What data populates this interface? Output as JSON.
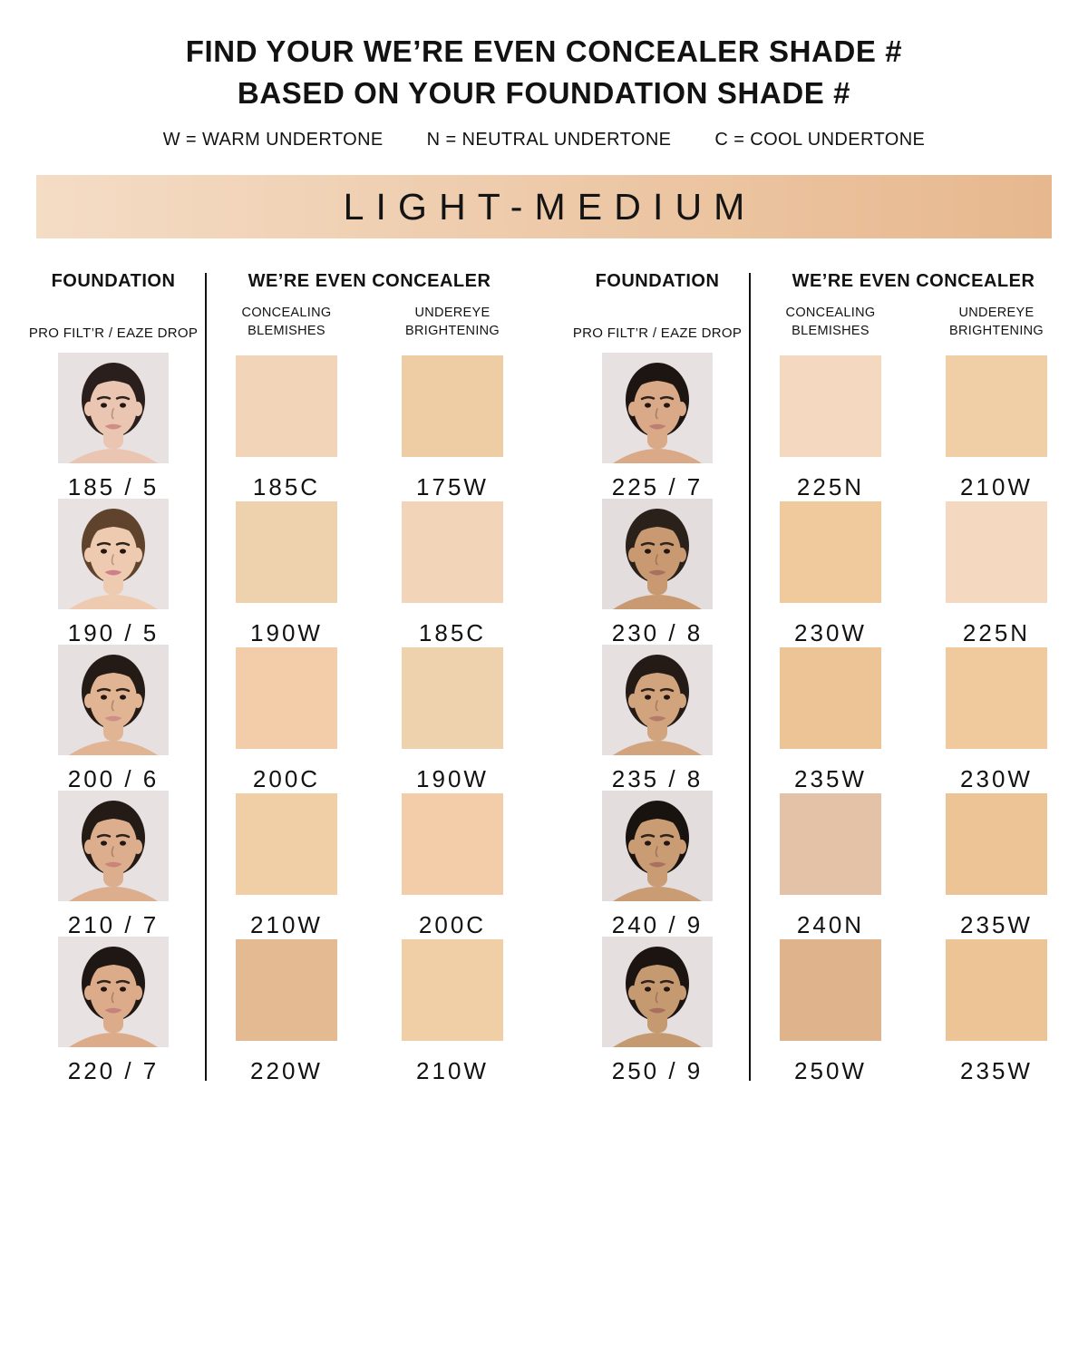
{
  "title": {
    "line1": "FIND YOUR WE’RE EVEN CONCEALER SHADE #",
    "line2": "BASED ON YOUR FOUNDATION SHADE #"
  },
  "legend": {
    "warm": "W = WARM UNDERTONE",
    "neutral": "N = NEUTRAL UNDERTONE",
    "cool": "C = COOL UNDERTONE"
  },
  "banner": {
    "label": "LIGHT-MEDIUM",
    "gradient_start": "#f4dcc5",
    "gradient_end": "#e7b88e"
  },
  "columns": {
    "foundation": "FOUNDATION",
    "foundation_sub": "PRO FILT’R / EAZE DROP",
    "concealer": "WE’RE EVEN CONCEALER",
    "blemish_sub": "CONCEALING BLEMISHES",
    "undereye_sub": "UNDEREYE BRIGHTENING"
  },
  "groups": [
    {
      "rows": [
        {
          "foundation_shade": "185 / 5",
          "blemish_label": "185C",
          "blemish_color": "#f2d4b9",
          "undereye_label": "175W",
          "undereye_color": "#efcda4",
          "face": {
            "bg": "#e7e1e1",
            "skin": "#eac6b2",
            "hair": "#2a1f1c",
            "lip": "#cf8d86"
          }
        },
        {
          "foundation_shade": "190 / 5",
          "blemish_label": "190W",
          "blemish_color": "#eed2ad",
          "undereye_label": "185C",
          "undereye_color": "#f2d4b9",
          "face": {
            "bg": "#e8e2e2",
            "skin": "#eecbb0",
            "hair": "#5f432c",
            "lip": "#ce7f8b"
          }
        },
        {
          "foundation_shade": "200 / 6",
          "blemish_label": "200C",
          "blemish_color": "#f3cca9",
          "undereye_label": "190W",
          "undereye_color": "#eed2ad",
          "face": {
            "bg": "#e6e0e0",
            "skin": "#e1b493",
            "hair": "#241a16",
            "lip": "#cf8f89"
          }
        },
        {
          "foundation_shade": "210 / 7",
          "blemish_label": "210W",
          "blemish_color": "#f1cfa6",
          "undereye_label": "200C",
          "undereye_color": "#f3cca9",
          "face": {
            "bg": "#e7e1e1",
            "skin": "#dcae8e",
            "hair": "#241a16",
            "lip": "#c98579"
          }
        },
        {
          "foundation_shade": "220 / 7",
          "blemish_label": "220W",
          "blemish_color": "#e3ba92",
          "undereye_label": "210W",
          "undereye_color": "#f1cfa6",
          "face": {
            "bg": "#e8e2e2",
            "skin": "#dcab89",
            "hair": "#1f1714",
            "lip": "#c3827e"
          }
        }
      ]
    },
    {
      "rows": [
        {
          "foundation_shade": "225 / 7",
          "blemish_label": "225N",
          "blemish_color": "#f5d8c0",
          "undereye_label": "210W",
          "undereye_color": "#f1cfa6",
          "face": {
            "bg": "#e7e1e1",
            "skin": "#d9a988",
            "hair": "#1c1512",
            "lip": "#bd7f72"
          }
        },
        {
          "foundation_shade": "230 / 8",
          "blemish_label": "230W",
          "blemish_color": "#f0ca9d",
          "undereye_label": "225N",
          "undereye_color": "#f5d8c0",
          "face": {
            "bg": "#e3dddd",
            "skin": "#c99a72",
            "hair": "#2a211b",
            "lip": "#a8715f"
          }
        },
        {
          "foundation_shade": "235 / 8",
          "blemish_label": "235W",
          "blemish_color": "#edc495",
          "undereye_label": "230W",
          "undereye_color": "#f0ca9d",
          "face": {
            "bg": "#e6e0e0",
            "skin": "#d2a47e",
            "hair": "#241b16",
            "lip": "#b57a6b"
          }
        },
        {
          "foundation_shade": "240 / 9",
          "blemish_label": "240N",
          "blemish_color": "#e4c2a8",
          "undereye_label": "235W",
          "undereye_color": "#edc495",
          "face": {
            "bg": "#e3dddd",
            "skin": "#c99c74",
            "hair": "#191310",
            "lip": "#ad6f60"
          }
        },
        {
          "foundation_shade": "250 / 9",
          "blemish_label": "250W",
          "blemish_color": "#dfb38c",
          "undereye_label": "235W",
          "undereye_color": "#edc495",
          "face": {
            "bg": "#e5dfdf",
            "skin": "#c69a71",
            "hair": "#1b1410",
            "lip": "#a96e5f"
          }
        }
      ]
    }
  ],
  "chart_data": {
    "type": "table",
    "title": "FIND YOUR WE’RE EVEN CONCEALER SHADE # BASED ON YOUR FOUNDATION SHADE #",
    "subtitle": "LIGHT-MEDIUM",
    "legend": {
      "W": "WARM UNDERTONE",
      "N": "NEUTRAL UNDERTONE",
      "C": "COOL UNDERTONE"
    },
    "columns": [
      "FOUNDATION (PRO FILT’R / EAZE DROP)",
      "CONCEALING BLEMISHES",
      "UNDEREYE BRIGHTENING"
    ],
    "rows": [
      [
        "185 / 5",
        "185C",
        "175W"
      ],
      [
        "190 / 5",
        "190W",
        "185C"
      ],
      [
        "200 / 6",
        "200C",
        "190W"
      ],
      [
        "210 / 7",
        "210W",
        "200C"
      ],
      [
        "220 / 7",
        "220W",
        "210W"
      ],
      [
        "225 / 7",
        "225N",
        "210W"
      ],
      [
        "230 / 8",
        "230W",
        "225N"
      ],
      [
        "235 / 8",
        "235W",
        "230W"
      ],
      [
        "240 / 9",
        "240N",
        "235W"
      ],
      [
        "250 / 9",
        "250W",
        "235W"
      ]
    ]
  }
}
